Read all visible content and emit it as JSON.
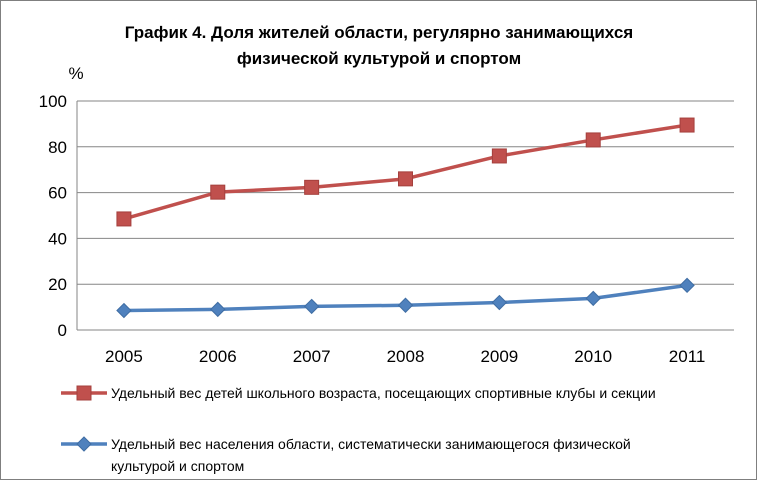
{
  "chart_data": {
    "type": "line",
    "title_lines": [
      "График 4. Доля жителей области, регулярно занимающихся",
      "физической культурой и спортом"
    ],
    "ylabel": "%",
    "categories": [
      "2005",
      "2006",
      "2007",
      "2008",
      "2009",
      "2010",
      "2011"
    ],
    "ylim": [
      0,
      100
    ],
    "yticks": [
      0,
      20,
      40,
      60,
      80,
      100
    ],
    "grid": true,
    "legend_position": "bottom",
    "series": [
      {
        "name_lines": [
          "Удельный вес детей школьного возраста, посещающих спортивные клубы и секции"
        ],
        "marker": "square",
        "color": "#c0504d",
        "values": [
          48.5,
          60.2,
          62.3,
          66.0,
          76.0,
          83.0,
          89.5
        ]
      },
      {
        "name_lines": [
          "Удельный вес населения области, систематически занимающегося физической",
          "культурой и спортом"
        ],
        "marker": "diamond",
        "color": "#4f81bd",
        "values": [
          8.5,
          9.0,
          10.3,
          10.8,
          12.0,
          13.8,
          19.5
        ]
      }
    ]
  }
}
